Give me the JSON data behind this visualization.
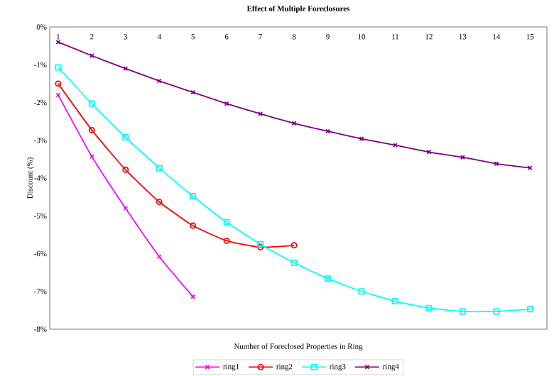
{
  "chart_data": {
    "type": "line",
    "title": "Effect of Multiple Foreclosures",
    "xlabel": "Number of Foreclosed Properties in Ring",
    "ylabel": "Discount (%)",
    "categories": [
      "1",
      "2",
      "3",
      "4",
      "5",
      "6",
      "7",
      "8",
      "9",
      "10",
      "11",
      "12",
      "13",
      "14",
      "15"
    ],
    "ylim": [
      -8,
      0
    ],
    "yticks": [
      {
        "value": -8,
        "label": "-8%"
      },
      {
        "value": -7,
        "label": "-7%"
      },
      {
        "value": -6,
        "label": "-6%"
      },
      {
        "value": -5,
        "label": "-5%"
      },
      {
        "value": -4,
        "label": "-4%"
      },
      {
        "value": -3,
        "label": "-3%"
      },
      {
        "value": -2,
        "label": "-2%"
      },
      {
        "value": -1,
        "label": "-1%"
      },
      {
        "value": 0,
        "label": "0%"
      }
    ],
    "legend": "bottom",
    "series": [
      {
        "name": "ring1",
        "color": "#ff00ff",
        "marker": "cross",
        "values": [
          -1.8,
          -3.43,
          -4.8,
          -6.08,
          -7.14,
          null,
          null,
          null,
          null,
          null,
          null,
          null,
          null,
          null,
          null
        ]
      },
      {
        "name": "ring2",
        "color": "#ff0000",
        "marker": "circle",
        "values": [
          -1.5,
          -2.73,
          -3.78,
          -4.63,
          -5.26,
          -5.66,
          -5.83,
          -5.78,
          null,
          null,
          null,
          null,
          null,
          null,
          null
        ]
      },
      {
        "name": "ring3",
        "color": "#00ffff",
        "marker": "square",
        "values": [
          -1.07,
          -2.03,
          -2.92,
          -3.73,
          -4.48,
          -5.17,
          -5.75,
          -6.24,
          -6.66,
          -7.0,
          -7.26,
          -7.44,
          -7.53,
          -7.53,
          -7.47
        ]
      },
      {
        "name": "ring4",
        "color": "#800080",
        "marker": "cross",
        "values": [
          -0.4,
          -0.76,
          -1.1,
          -1.43,
          -1.73,
          -2.03,
          -2.3,
          -2.55,
          -2.76,
          -2.96,
          -3.13,
          -3.31,
          -3.45,
          -3.62,
          -3.73
        ]
      }
    ]
  }
}
